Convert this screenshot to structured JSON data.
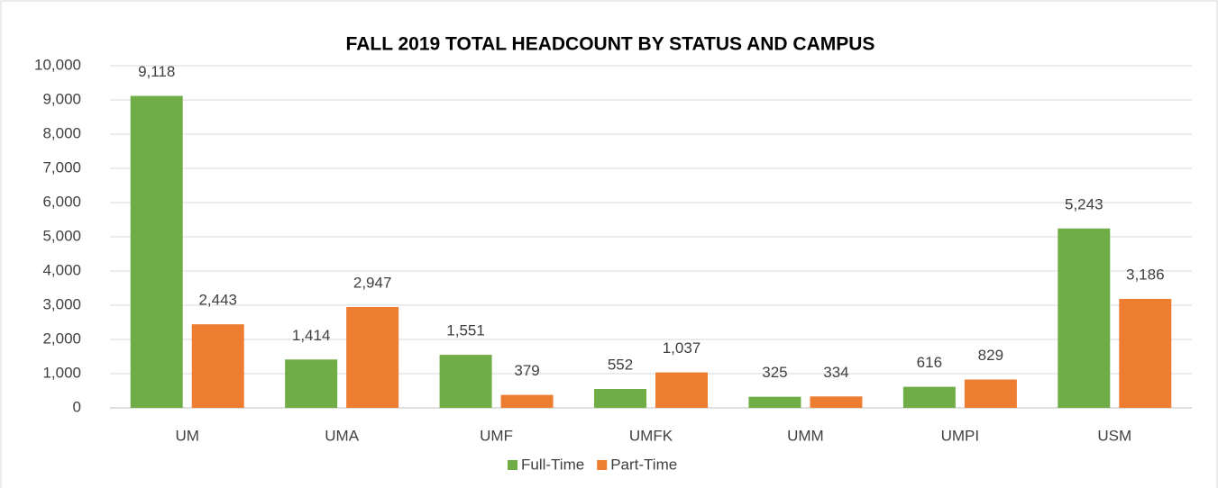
{
  "chart_data": {
    "type": "bar",
    "title": "FALL 2019 TOTAL HEADCOUNT BY STATUS AND CAMPUS",
    "categories": [
      "UM",
      "UMA",
      "UMF",
      "UMFK",
      "UMM",
      "UMPI",
      "USM"
    ],
    "series": [
      {
        "name": "Full-Time",
        "color": "#70ad47",
        "values": [
          9118,
          1414,
          1551,
          552,
          325,
          616,
          5243
        ],
        "value_labels": [
          "9,118",
          "1,414",
          "1,551",
          "552",
          "325",
          "616",
          "5,243"
        ]
      },
      {
        "name": "Part-Time",
        "color": "#ed7d31",
        "values": [
          2443,
          2947,
          379,
          1037,
          334,
          829,
          3186
        ],
        "value_labels": [
          "2,443",
          "2,947",
          "379",
          "1,037",
          "334",
          "829",
          "3,186"
        ]
      }
    ],
    "ylim": [
      0,
      10000
    ],
    "yticks": [
      0,
      {
        "value": 1000,
        "label": "1,000"
      },
      {
        "value": 2000,
        "label": "2,000"
      },
      {
        "value": 3000,
        "label": "3,000"
      },
      {
        "value": 4000,
        "label": "4,000"
      },
      {
        "value": 5000,
        "label": "5,000"
      },
      {
        "value": 6000,
        "label": "6,000"
      },
      {
        "value": 7000,
        "label": "7,000"
      },
      {
        "value": 8000,
        "label": "8,000"
      },
      {
        "value": 9000,
        "label": "9,000"
      },
      {
        "value": 10000,
        "label": "10,000"
      }
    ],
    "grid": true,
    "legend": "bottom"
  }
}
